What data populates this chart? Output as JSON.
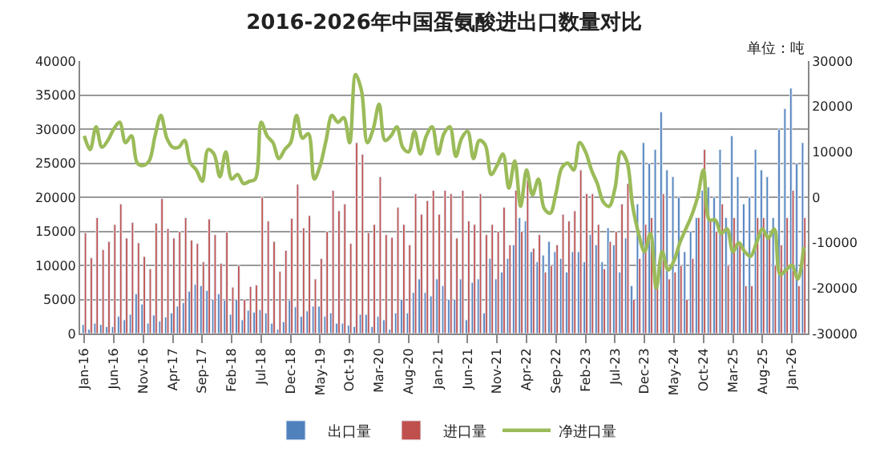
{
  "chart_data": {
    "type": "bar",
    "title": "2016-2026年中国蛋氨酸进出口数量对比",
    "annotations": [
      "单位：吨"
    ],
    "categories": [
      "Jan-16",
      null,
      null,
      null,
      null,
      "Jun-16",
      null,
      null,
      null,
      null,
      "Nov-16",
      null,
      null,
      null,
      null,
      "Apr-17",
      null,
      null,
      null,
      null,
      "Sep-17",
      null,
      null,
      null,
      null,
      "Feb-18",
      null,
      null,
      null,
      null,
      "Jul-18",
      null,
      null,
      null,
      null,
      "Dec-18",
      null,
      null,
      null,
      null,
      "May-19",
      null,
      null,
      null,
      null,
      "Oct-19",
      null,
      null,
      null,
      null,
      "Mar-20",
      null,
      null,
      null,
      null,
      "Aug-20",
      null,
      null,
      null,
      null,
      "Jan-21",
      null,
      null,
      null,
      null,
      "Jun-21",
      null,
      null,
      null,
      null,
      "Nov-21",
      null,
      null,
      null,
      null,
      "Apr-22",
      null,
      null,
      null,
      null,
      "Sep-22",
      null,
      null,
      null,
      null,
      "Feb-23",
      null,
      null,
      null,
      null,
      "Jul-23",
      null,
      null,
      null,
      null,
      "Dec-23",
      null,
      null,
      null,
      null,
      "May-24",
      null,
      null,
      null,
      null,
      "Oct-24",
      null,
      null,
      null,
      null,
      "Mar-25",
      null,
      null,
      null,
      null,
      "Aug-25",
      null,
      null,
      null,
      null,
      "Jan-26",
      null,
      null
    ],
    "series": [
      {
        "name": "出口量",
        "color": "#4f81bd",
        "values": [
          1300,
          600,
          1500,
          1300,
          1000,
          1000,
          2500,
          2000,
          2800,
          5800,
          4300,
          1500,
          2700,
          1800,
          2400,
          3000,
          4000,
          4500,
          6200,
          7200,
          7000,
          6300,
          5000,
          5800,
          4900,
          2800,
          5000,
          2000,
          3400,
          3100,
          3500,
          3000,
          1500,
          600,
          1700,
          4900,
          3900,
          2500,
          3300,
          4000,
          4000,
          2500,
          3000,
          1500,
          1500,
          1200,
          1000,
          2800,
          2800,
          1000,
          2500,
          2000,
          600,
          3000,
          5000,
          3000,
          6000,
          8000,
          6000,
          5500,
          8000,
          7000,
          5000,
          5000,
          8000,
          2000,
          7500,
          8000,
          3000,
          11000,
          8000,
          9000,
          11000,
          13000,
          17000,
          16500,
          12000,
          10500,
          11500,
          13500,
          12000,
          11000,
          9000,
          12000,
          12000,
          10500,
          14500,
          13000,
          10500,
          15500,
          13000,
          9000,
          14000,
          7000,
          19000,
          28000,
          25000,
          27000,
          32500,
          24000,
          23000,
          20000,
          12000,
          15000,
          17000,
          21000,
          21500,
          20000,
          27000,
          17000,
          29000,
          23000,
          19000,
          20000,
          27000,
          24000,
          23000,
          17000,
          30000,
          33000,
          36000,
          25000,
          28000
        ]
      },
      {
        "name": "进口量",
        "color": "#c0504d",
        "values": [
          14800,
          11100,
          17000,
          12300,
          13500,
          16000,
          19000,
          14000,
          16300,
          13300,
          11300,
          9500,
          16200,
          19800,
          15400,
          14000,
          15000,
          17000,
          13700,
          13200,
          10500,
          16800,
          14500,
          10300,
          14900,
          6800,
          10000,
          5000,
          6900,
          7100,
          20000,
          16500,
          13500,
          9100,
          12200,
          16900,
          21900,
          15500,
          17300,
          8000,
          11000,
          15000,
          21000,
          18000,
          19000,
          13200,
          28000,
          26300,
          14800,
          16000,
          23000,
          14500,
          14100,
          18500,
          16000,
          13000,
          20500,
          17500,
          19500,
          21000,
          17500,
          21000,
          20500,
          14000,
          21000,
          16500,
          16000,
          20500,
          14500,
          16000,
          15000,
          18500,
          13000,
          21000,
          15000,
          22500,
          12500,
          14500,
          9000,
          10000,
          13000,
          17500,
          16500,
          18000,
          24000,
          20500,
          20500,
          16000,
          9500,
          13500,
          15000,
          19000,
          22000,
          5000,
          11000,
          16000,
          17000,
          7000,
          20500,
          8000,
          9000,
          10000,
          5000,
          11000,
          17000,
          27000,
          16500,
          15000,
          19000,
          10000,
          17000,
          13000,
          7000,
          7000,
          17000,
          17000,
          14000,
          10000,
          13000,
          17000,
          21000,
          7000,
          17000
        ]
      },
      {
        "name": "净进口量",
        "type": "line",
        "axis": "y2",
        "color": "#9bbb59",
        "values": [
          13500,
          10500,
          15500,
          11000,
          12500,
          15000,
          16500,
          12000,
          13500,
          7500,
          7000,
          8000,
          13500,
          18000,
          13000,
          11000,
          11000,
          12500,
          7500,
          6000,
          3500,
          10500,
          9500,
          4500,
          10000,
          4000,
          5000,
          3000,
          3500,
          4000,
          16500,
          13500,
          12000,
          8500,
          10500,
          12000,
          18000,
          13000,
          14000,
          4000,
          7000,
          12500,
          18000,
          16500,
          17500,
          12000,
          27000,
          23500,
          12000,
          15000,
          20500,
          12500,
          13500,
          15500,
          11000,
          10000,
          14500,
          9500,
          13500,
          15500,
          9500,
          14000,
          15500,
          9000,
          13000,
          14500,
          8500,
          12500,
          11500,
          5000,
          7000,
          9500,
          2000,
          8000,
          -2000,
          6000,
          500,
          4000,
          -2500,
          -3500,
          1000,
          6500,
          7500,
          6000,
          12000,
          10000,
          6000,
          3000,
          -1000,
          -2000,
          2000,
          10000,
          8000,
          -2000,
          -8000,
          -12000,
          -8000,
          -20000,
          -12000,
          -16000,
          -14000,
          -10000,
          -7000,
          -4000,
          0,
          6000,
          -5000,
          -5000,
          -8000,
          -7000,
          -12000,
          -10000,
          -12000,
          -13000,
          -10000,
          -7000,
          -9000,
          -7000,
          -17000,
          -16000,
          -15000,
          -18000,
          -11000
        ]
      }
    ],
    "ylim": [
      0,
      40000
    ],
    "yticks": [
      0,
      5000,
      10000,
      15000,
      20000,
      25000,
      30000,
      35000,
      40000
    ],
    "y2lim": [
      -30000,
      30000
    ],
    "y2ticks": [
      -30000,
      -20000,
      -10000,
      0,
      10000,
      20000,
      30000
    ],
    "grid": "y",
    "legend": "bottom"
  }
}
